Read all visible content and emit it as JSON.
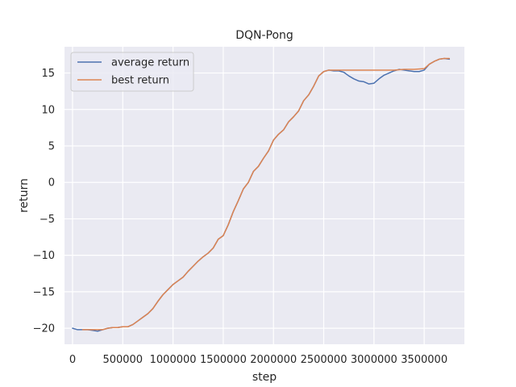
{
  "chart_data": {
    "type": "line",
    "title": "DQN-Pong",
    "xlabel": "step",
    "ylabel": "return",
    "xlim": [
      -80000,
      3900000
    ],
    "ylim": [
      -22.2,
      18.6
    ],
    "xticks": [
      0,
      500000,
      1000000,
      1500000,
      2000000,
      2500000,
      3000000,
      3500000
    ],
    "xtick_labels": [
      "0",
      "500000",
      "1000000",
      "1500000",
      "2000000",
      "2500000",
      "3000000",
      "3500000"
    ],
    "yticks": [
      -20,
      -15,
      -10,
      -5,
      0,
      5,
      10,
      15
    ],
    "ytick_labels": [
      "−20",
      "−15",
      "−10",
      "−5",
      "0",
      "5",
      "10",
      "15"
    ],
    "grid": true,
    "legend_position": "top-left",
    "background_color": "#eaeaf2",
    "series": [
      {
        "name": "average return",
        "color": "#4c72b0",
        "x": [
          0,
          50000,
          100000,
          150000,
          200000,
          250000,
          300000,
          350000,
          400000,
          450000,
          500000,
          550000,
          600000,
          650000,
          700000,
          750000,
          800000,
          850000,
          900000,
          950000,
          1000000,
          1050000,
          1100000,
          1150000,
          1200000,
          1250000,
          1300000,
          1350000,
          1400000,
          1450000,
          1500000,
          1550000,
          1600000,
          1650000,
          1700000,
          1750000,
          1800000,
          1850000,
          1900000,
          1950000,
          2000000,
          2050000,
          2100000,
          2150000,
          2200000,
          2250000,
          2300000,
          2350000,
          2400000,
          2450000,
          2500000,
          2550000,
          2600000,
          2650000,
          2700000,
          2750000,
          2800000,
          2850000,
          2900000,
          2950000,
          3000000,
          3050000,
          3100000,
          3150000,
          3200000,
          3250000,
          3300000,
          3350000,
          3400000,
          3450000,
          3500000,
          3550000,
          3600000,
          3650000,
          3700000,
          3750000
        ],
        "values": [
          -20.0,
          -20.2,
          -20.2,
          -20.2,
          -20.3,
          -20.4,
          -20.2,
          -20.0,
          -19.9,
          -19.9,
          -19.8,
          -19.8,
          -19.5,
          -19.0,
          -18.5,
          -18.0,
          -17.3,
          -16.3,
          -15.4,
          -14.7,
          -14.0,
          -13.5,
          -13.0,
          -12.2,
          -11.5,
          -10.8,
          -10.2,
          -9.7,
          -9.0,
          -7.8,
          -7.3,
          -5.8,
          -4.0,
          -2.5,
          -0.9,
          0.0,
          1.5,
          2.2,
          3.3,
          4.3,
          5.8,
          6.6,
          7.2,
          8.3,
          9.0,
          9.8,
          11.2,
          12.0,
          13.2,
          14.6,
          15.2,
          15.4,
          15.3,
          15.3,
          15.1,
          14.6,
          14.2,
          13.9,
          13.8,
          13.5,
          13.6,
          14.2,
          14.7,
          15.0,
          15.3,
          15.5,
          15.4,
          15.3,
          15.2,
          15.2,
          15.4,
          16.2,
          16.6,
          16.9,
          17.0,
          16.9
        ]
      },
      {
        "name": "best return",
        "color": "#dd8452",
        "x": [
          100000,
          150000,
          200000,
          250000,
          300000,
          350000,
          400000,
          450000,
          500000,
          550000,
          600000,
          650000,
          700000,
          750000,
          800000,
          850000,
          900000,
          950000,
          1000000,
          1050000,
          1100000,
          1150000,
          1200000,
          1250000,
          1300000,
          1350000,
          1400000,
          1450000,
          1500000,
          1550000,
          1600000,
          1650000,
          1700000,
          1750000,
          1800000,
          1850000,
          1900000,
          1950000,
          2000000,
          2050000,
          2100000,
          2150000,
          2200000,
          2250000,
          2300000,
          2350000,
          2400000,
          2450000,
          2500000,
          2550000,
          2600000,
          2700000,
          2800000,
          2900000,
          3000000,
          3100000,
          3200000,
          3300000,
          3400000,
          3500000,
          3550000,
          3600000,
          3650000,
          3700000,
          3750000
        ],
        "values": [
          -20.2,
          -20.2,
          -20.2,
          -20.2,
          -20.2,
          -20.0,
          -19.9,
          -19.9,
          -19.8,
          -19.8,
          -19.5,
          -19.0,
          -18.5,
          -18.0,
          -17.3,
          -16.3,
          -15.4,
          -14.7,
          -14.0,
          -13.5,
          -13.0,
          -12.2,
          -11.5,
          -10.8,
          -10.2,
          -9.7,
          -9.0,
          -7.8,
          -7.3,
          -5.8,
          -4.0,
          -2.5,
          -0.9,
          0.0,
          1.5,
          2.2,
          3.3,
          4.3,
          5.8,
          6.6,
          7.2,
          8.3,
          9.0,
          9.8,
          11.2,
          12.0,
          13.2,
          14.6,
          15.2,
          15.4,
          15.4,
          15.4,
          15.4,
          15.4,
          15.4,
          15.4,
          15.4,
          15.5,
          15.5,
          15.6,
          16.2,
          16.6,
          16.9,
          17.0,
          17.0
        ]
      }
    ]
  }
}
